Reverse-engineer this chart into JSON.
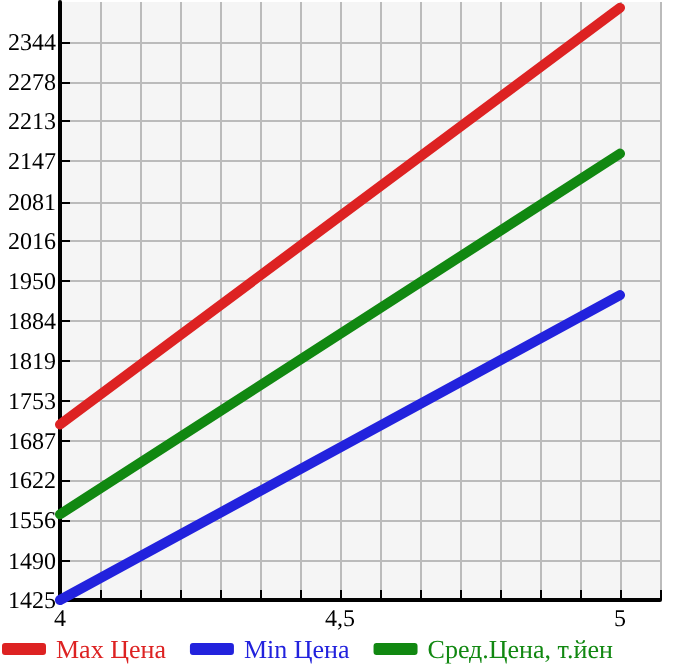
{
  "chart_data": {
    "type": "line",
    "x": [
      4,
      5
    ],
    "series": [
      {
        "name": "Max Цена",
        "color": "#dd2222",
        "values": [
          1714,
          2400
        ]
      },
      {
        "name": "Min Цена",
        "color": "#2222dd",
        "values": [
          1425,
          1927
        ]
      },
      {
        "name": "Сред.Цена, т.йен",
        "color": "#118811",
        "values": [
          1566,
          2160
        ]
      }
    ],
    "xlim": [
      4,
      5.0714
    ],
    "xticks": [
      4,
      {
        "value": 4.0714,
        "label": null
      },
      {
        "value": 4.1429,
        "label": null
      },
      {
        "value": 4.2143,
        "label": null
      },
      {
        "value": 4.2857,
        "label": null
      },
      {
        "value": 4.3571,
        "label": null
      },
      {
        "value": 4.4286,
        "label": null
      },
      {
        "value": 4.5,
        "label": "4,5"
      },
      {
        "value": 4.5714,
        "label": null
      },
      {
        "value": 4.6429,
        "label": null
      },
      {
        "value": 4.7143,
        "label": null
      },
      {
        "value": 4.7857,
        "label": null
      },
      {
        "value": 4.8571,
        "label": null
      },
      {
        "value": 4.9286,
        "label": null
      },
      5,
      {
        "value": 5.0714,
        "label": null
      }
    ],
    "ylim": [
      1425,
      2409.6
    ],
    "yticks": [
      1425,
      1490,
      1556,
      1622,
      1687,
      1753,
      1819,
      1884,
      1950,
      2016,
      2081,
      2147,
      2213,
      2278,
      2344
    ],
    "grid": true,
    "legend": "bottom",
    "marker": "none",
    "line_style": "solid"
  }
}
